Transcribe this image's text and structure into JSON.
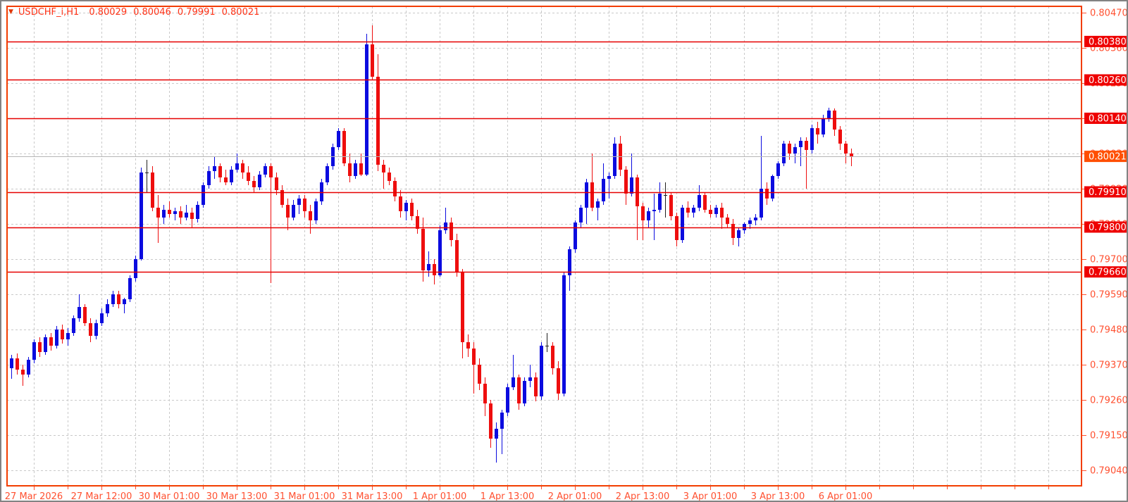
{
  "window": {
    "symbol_period": "USDCHF_i,H1",
    "ohlc": {
      "open": "0.80029",
      "high": "0.80046",
      "low": "0.79991",
      "close": "0.80021"
    }
  },
  "icons": {
    "title_marker": "▼"
  },
  "colors": {
    "background": "#ffffff",
    "frame": "#838383",
    "plot_border": "#f23d00",
    "grid": "#c9c9c9",
    "bull_candle": "#0b0bdf",
    "bear_candle": "#ee0e0e",
    "doji_candle": "#202020",
    "level_line": "#e60000",
    "badge_bg": "#ee0000",
    "badge_text": "#ffffff",
    "current_badge_bg": "#ff4e00",
    "current_line": "#b6b6b6",
    "axis_text": "#ff5030",
    "title_text": "#ff3318"
  },
  "chart_data": {
    "type": "candlestick",
    "symbol": "USDCHF_i",
    "timeframe": "H1",
    "title": "USDCHF_i,H1",
    "grid": true,
    "y_axis": {
      "min": 0.7904,
      "max": 0.8047,
      "step": 0.0011,
      "labels": [
        "0.80470",
        "0.80360",
        "0.80250",
        "0.80140",
        "0.80030",
        "0.79920",
        "0.79810",
        "0.79700",
        "0.79590",
        "0.79480",
        "0.79370",
        "0.79260",
        "0.79150",
        "0.79040"
      ]
    },
    "x_labels": [
      {
        "label": "27 Mar 2026",
        "candle": 4
      },
      {
        "label": "27 Mar 12:00",
        "candle": 16
      },
      {
        "label": "30 Mar 01:00",
        "candle": 28
      },
      {
        "label": "30 Mar 13:00",
        "candle": 40
      },
      {
        "label": "31 Mar 01:00",
        "candle": 52
      },
      {
        "label": "31 Mar 13:00",
        "candle": 64
      },
      {
        "label": "1 Apr 01:00",
        "candle": 76
      },
      {
        "label": "1 Apr 13:00",
        "candle": 88
      },
      {
        "label": "2 Apr 01:00",
        "candle": 100
      },
      {
        "label": "2 Apr 13:00",
        "candle": 112
      },
      {
        "label": "3 Apr 01:00",
        "candle": 124
      },
      {
        "label": "3 Apr 13:00",
        "candle": 136
      },
      {
        "label": "6 Apr 01:00",
        "candle": 148
      }
    ],
    "levels": [
      "0.80380",
      "0.80260",
      "0.80140",
      "0.79910",
      "0.79800",
      "0.79660"
    ],
    "current_price": "0.80021",
    "candles": [
      [
        0.7936,
        0.794,
        0.79325,
        0.7939
      ],
      [
        0.7939,
        0.79405,
        0.7934,
        0.79355
      ],
      [
        0.79355,
        0.7937,
        0.79305,
        0.7934
      ],
      [
        0.7934,
        0.79395,
        0.7933,
        0.79385
      ],
      [
        0.79385,
        0.7945,
        0.79375,
        0.7944
      ],
      [
        0.7944,
        0.79455,
        0.79395,
        0.7941
      ],
      [
        0.7941,
        0.79465,
        0.794,
        0.79455
      ],
      [
        0.79455,
        0.7947,
        0.79415,
        0.7943
      ],
      [
        0.7943,
        0.7949,
        0.7942,
        0.7948
      ],
      [
        0.7948,
        0.79495,
        0.79435,
        0.7945
      ],
      [
        0.7945,
        0.79485,
        0.7943,
        0.7947
      ],
      [
        0.7947,
        0.79525,
        0.7946,
        0.79515
      ],
      [
        0.79515,
        0.7959,
        0.79505,
        0.7955
      ],
      [
        0.7955,
        0.7956,
        0.7949,
        0.795
      ],
      [
        0.795,
        0.79515,
        0.7944,
        0.7946
      ],
      [
        0.7946,
        0.7951,
        0.7945,
        0.795
      ],
      [
        0.795,
        0.79545,
        0.7949,
        0.7953
      ],
      [
        0.7953,
        0.79575,
        0.7952,
        0.7956
      ],
      [
        0.7956,
        0.796,
        0.7955,
        0.7959
      ],
      [
        0.7959,
        0.796,
        0.79545,
        0.7956
      ],
      [
        0.7956,
        0.7958,
        0.7953,
        0.79575
      ],
      [
        0.79575,
        0.7965,
        0.79565,
        0.7964
      ],
      [
        0.7964,
        0.7971,
        0.7963,
        0.797
      ],
      [
        0.797,
        0.79985,
        0.79695,
        0.7997
      ],
      [
        0.7997,
        0.8001,
        0.7991,
        0.7997
      ],
      [
        0.7997,
        0.7999,
        0.7985,
        0.7986
      ],
      [
        0.7986,
        0.799,
        0.7975,
        0.7983
      ],
      [
        0.7983,
        0.7987,
        0.7981,
        0.79855
      ],
      [
        0.79855,
        0.7988,
        0.7983,
        0.7984
      ],
      [
        0.7984,
        0.7986,
        0.7982,
        0.7985
      ],
      [
        0.7985,
        0.79865,
        0.7981,
        0.7983
      ],
      [
        0.7983,
        0.7987,
        0.7982,
        0.79845
      ],
      [
        0.79845,
        0.7986,
        0.798,
        0.79825
      ],
      [
        0.79825,
        0.7988,
        0.79815,
        0.7987
      ],
      [
        0.7987,
        0.7994,
        0.7986,
        0.7993
      ],
      [
        0.7993,
        0.7999,
        0.7992,
        0.79975
      ],
      [
        0.79975,
        0.8002,
        0.7995,
        0.7999
      ],
      [
        0.7999,
        0.8,
        0.7994,
        0.79955
      ],
      [
        0.79955,
        0.7998,
        0.7993,
        0.7994
      ],
      [
        0.7994,
        0.7999,
        0.7993,
        0.7998
      ],
      [
        0.7998,
        0.8003,
        0.7997,
        0.8
      ],
      [
        0.8,
        0.8001,
        0.7995,
        0.7997
      ],
      [
        0.7997,
        0.7999,
        0.7993,
        0.79945
      ],
      [
        0.79945,
        0.7996,
        0.7991,
        0.79925
      ],
      [
        0.79925,
        0.79975,
        0.79915,
        0.79965
      ],
      [
        0.79965,
        0.8,
        0.79955,
        0.7999
      ],
      [
        0.7999,
        0.8,
        0.79625,
        0.79955
      ],
      [
        0.79955,
        0.7997,
        0.799,
        0.79915
      ],
      [
        0.79915,
        0.7993,
        0.7986,
        0.7987
      ],
      [
        0.7987,
        0.7989,
        0.7979,
        0.7983
      ],
      [
        0.7983,
        0.79885,
        0.7982,
        0.7987
      ],
      [
        0.7987,
        0.799,
        0.7984,
        0.7989
      ],
      [
        0.7989,
        0.799,
        0.7983,
        0.7985
      ],
      [
        0.7985,
        0.7987,
        0.7978,
        0.7982
      ],
      [
        0.7982,
        0.7989,
        0.7981,
        0.7988
      ],
      [
        0.7988,
        0.7995,
        0.7987,
        0.7994
      ],
      [
        0.7994,
        0.8,
        0.7993,
        0.7999
      ],
      [
        0.7999,
        0.8006,
        0.7998,
        0.8005
      ],
      [
        0.8005,
        0.8011,
        0.8004,
        0.801
      ],
      [
        0.801,
        0.8011,
        0.7999,
        0.8
      ],
      [
        0.8,
        0.8003,
        0.7994,
        0.7996
      ],
      [
        0.7996,
        0.8001,
        0.7995,
        0.8
      ],
      [
        0.8,
        0.8003,
        0.7996,
        0.79965
      ],
      [
        0.79965,
        0.80405,
        0.7996,
        0.8037
      ],
      [
        0.8037,
        0.8043,
        0.8026,
        0.8027
      ],
      [
        0.8027,
        0.8034,
        0.79975,
        0.79995
      ],
      [
        0.79995,
        0.8001,
        0.7992,
        0.7997
      ],
      [
        0.7997,
        0.79985,
        0.7993,
        0.79945
      ],
      [
        0.79945,
        0.79955,
        0.7988,
        0.79895
      ],
      [
        0.79895,
        0.79915,
        0.7983,
        0.7985
      ],
      [
        0.7985,
        0.79885,
        0.7982,
        0.79875
      ],
      [
        0.79875,
        0.7989,
        0.7982,
        0.79835
      ],
      [
        0.79835,
        0.79855,
        0.7978,
        0.79795
      ],
      [
        0.79795,
        0.7983,
        0.7963,
        0.79665
      ],
      [
        0.79665,
        0.79725,
        0.79645,
        0.79685
      ],
      [
        0.79685,
        0.797,
        0.7962,
        0.7965
      ],
      [
        0.7965,
        0.79805,
        0.79645,
        0.7979
      ],
      [
        0.7979,
        0.7986,
        0.7978,
        0.79815
      ],
      [
        0.79815,
        0.7983,
        0.7974,
        0.7976
      ],
      [
        0.7976,
        0.7978,
        0.79645,
        0.7966
      ],
      [
        0.7966,
        0.7967,
        0.7939,
        0.7944
      ],
      [
        0.7944,
        0.79465,
        0.79395,
        0.7942
      ],
      [
        0.7942,
        0.7944,
        0.7928,
        0.7937
      ],
      [
        0.7937,
        0.7939,
        0.7929,
        0.7931
      ],
      [
        0.7931,
        0.7933,
        0.7921,
        0.7925
      ],
      [
        0.7925,
        0.7926,
        0.7911,
        0.7914
      ],
      [
        0.7914,
        0.7919,
        0.79065,
        0.7917
      ],
      [
        0.7917,
        0.7923,
        0.7909,
        0.7922
      ],
      [
        0.7922,
        0.7931,
        0.7921,
        0.793
      ],
      [
        0.793,
        0.794,
        0.7929,
        0.7933
      ],
      [
        0.7933,
        0.7934,
        0.7923,
        0.7925
      ],
      [
        0.7925,
        0.7933,
        0.7924,
        0.7932
      ],
      [
        0.7932,
        0.7937,
        0.793,
        0.7933
      ],
      [
        0.7933,
        0.79345,
        0.79255,
        0.7927
      ],
      [
        0.7927,
        0.7944,
        0.7926,
        0.7943
      ],
      [
        0.7943,
        0.7947,
        0.7941,
        0.7943
      ],
      [
        0.7943,
        0.7944,
        0.7934,
        0.7936
      ],
      [
        0.7936,
        0.7938,
        0.7926,
        0.7928
      ],
      [
        0.7928,
        0.7966,
        0.7927,
        0.7965
      ],
      [
        0.7965,
        0.7974,
        0.796,
        0.7973
      ],
      [
        0.7973,
        0.7982,
        0.7972,
        0.79815
      ],
      [
        0.79815,
        0.7987,
        0.798,
        0.7986
      ],
      [
        0.7986,
        0.7995,
        0.7981,
        0.7994
      ],
      [
        0.7994,
        0.8003,
        0.7985,
        0.7986
      ],
      [
        0.7986,
        0.7989,
        0.7982,
        0.7988
      ],
      [
        0.7988,
        0.8,
        0.7987,
        0.7995
      ],
      [
        0.7995,
        0.7997,
        0.7989,
        0.7996
      ],
      [
        0.7996,
        0.8008,
        0.7995,
        0.8006
      ],
      [
        0.8006,
        0.80085,
        0.7996,
        0.7998
      ],
      [
        0.7998,
        0.7999,
        0.7987,
        0.79905
      ],
      [
        0.79905,
        0.8003,
        0.79895,
        0.79955
      ],
      [
        0.79955,
        0.79965,
        0.7976,
        0.79865
      ],
      [
        0.79865,
        0.79875,
        0.7976,
        0.7982
      ],
      [
        0.7982,
        0.7986,
        0.798,
        0.7985
      ],
      [
        0.7985,
        0.79905,
        0.7976,
        0.79855
      ],
      [
        0.79855,
        0.7994,
        0.79845,
        0.79905
      ],
      [
        0.799,
        0.7994,
        0.7983,
        0.799
      ],
      [
        0.799,
        0.7991,
        0.7982,
        0.79835
      ],
      [
        0.79835,
        0.79845,
        0.7974,
        0.7976
      ],
      [
        0.7976,
        0.7987,
        0.7975,
        0.7986
      ],
      [
        0.7986,
        0.7988,
        0.7983,
        0.79845
      ],
      [
        0.79845,
        0.7987,
        0.7983,
        0.7986
      ],
      [
        0.7986,
        0.7993,
        0.7985,
        0.799
      ],
      [
        0.799,
        0.7991,
        0.79845,
        0.79855
      ],
      [
        0.79855,
        0.7987,
        0.7983,
        0.7984
      ],
      [
        0.7984,
        0.7987,
        0.7983,
        0.7986
      ],
      [
        0.7986,
        0.79875,
        0.79795,
        0.7983
      ],
      [
        0.7983,
        0.7984,
        0.798,
        0.7981
      ],
      [
        0.7981,
        0.79825,
        0.79745,
        0.79765
      ],
      [
        0.79765,
        0.798,
        0.7974,
        0.7979
      ],
      [
        0.7979,
        0.79815,
        0.7978,
        0.7981
      ],
      [
        0.7981,
        0.7983,
        0.79795,
        0.7982
      ],
      [
        0.7982,
        0.7984,
        0.79805,
        0.7983
      ],
      [
        0.7983,
        0.80085,
        0.7982,
        0.7992
      ],
      [
        0.7992,
        0.7994,
        0.7987,
        0.7989
      ],
      [
        0.7989,
        0.79965,
        0.7988,
        0.7996
      ],
      [
        0.7996,
        0.80005,
        0.7995,
        0.8
      ],
      [
        0.8,
        0.8007,
        0.7999,
        0.8006
      ],
      [
        0.8006,
        0.8007,
        0.8001,
        0.8003
      ],
      [
        0.8003,
        0.8006,
        0.8,
        0.8005
      ],
      [
        0.8005,
        0.8008,
        0.7999,
        0.8007
      ],
      [
        0.8007,
        0.8008,
        0.7992,
        0.8004
      ],
      [
        0.8004,
        0.8012,
        0.8003,
        0.8011
      ],
      [
        0.8011,
        0.8013,
        0.8006,
        0.8009
      ],
      [
        0.8009,
        0.8015,
        0.8008,
        0.8014
      ],
      [
        0.8014,
        0.80172,
        0.8013,
        0.80165
      ],
      [
        0.80165,
        0.8017,
        0.80085,
        0.80105
      ],
      [
        0.80105,
        0.80115,
        0.8004,
        0.8006
      ],
      [
        0.8006,
        0.8007,
        0.8,
        0.8003
      ],
      [
        0.80029,
        0.80046,
        0.79991,
        0.80021
      ]
    ]
  }
}
